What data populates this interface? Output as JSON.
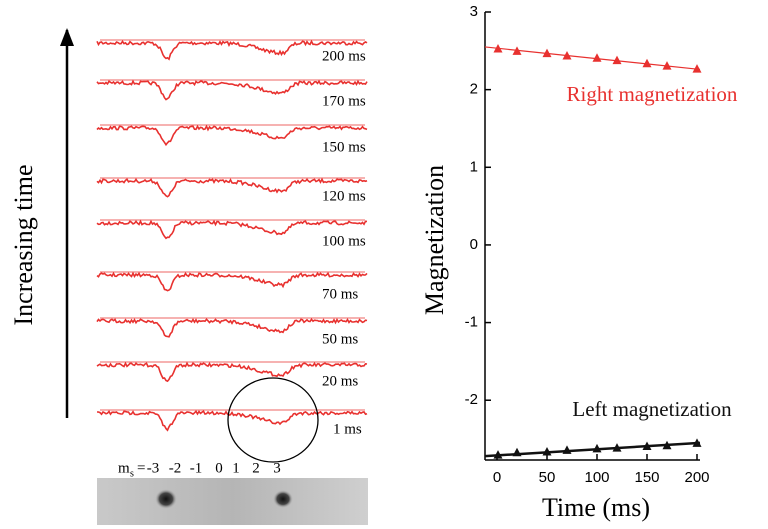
{
  "spectra": {
    "axis_label": "Increasing time",
    "labels": [
      "200 ms",
      "170 ms",
      "150 ms",
      "120 ms",
      "100 ms",
      "70 ms",
      "50 ms",
      "20 ms",
      "1 ms"
    ],
    "ms_symbol": "m",
    "ms_subscript": "s",
    "ms_equals": "=",
    "ms_values": [
      "-3",
      "-2",
      "-1",
      "0",
      "1",
      "2",
      "3"
    ]
  },
  "chart_data": {
    "type": "line",
    "xlabel": "Time (ms)",
    "ylabel": "Magnetization",
    "xlim": [
      -12,
      203
    ],
    "ylim": [
      -2.77,
      3
    ],
    "xticks": [
      0,
      50,
      100,
      150,
      200
    ],
    "yticks": [
      -2,
      -1,
      0,
      1,
      2,
      3
    ],
    "x": [
      1,
      20,
      50,
      70,
      100,
      120,
      150,
      170,
      200
    ],
    "series": [
      {
        "name": "Right magnetization",
        "color": "#e8312f",
        "values": [
          2.53,
          2.5,
          2.47,
          2.44,
          2.41,
          2.38,
          2.34,
          2.31,
          2.27
        ],
        "trend": [
          2.55,
          2.26
        ]
      },
      {
        "name": "Left magnetization",
        "color": "#111111",
        "values": [
          -2.7,
          -2.67,
          -2.66,
          -2.64,
          -2.62,
          -2.61,
          -2.59,
          -2.58,
          -2.55
        ],
        "trend": [
          -2.72,
          -2.55
        ]
      }
    ]
  }
}
